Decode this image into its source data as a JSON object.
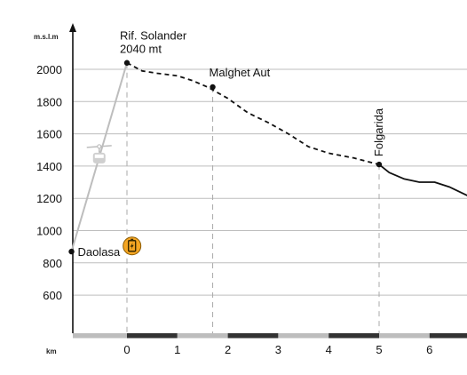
{
  "chart_data": {
    "type": "line",
    "ylabel": "m.s.l.m",
    "xlabel": "km",
    "y_ticks": [
      600,
      800,
      1000,
      1200,
      1400,
      1600,
      1800,
      2000
    ],
    "x_ticks": [
      0,
      1,
      2,
      3,
      4,
      5,
      6
    ],
    "xlim": [
      -1.1,
      6.8
    ],
    "ylim": [
      450,
      2250
    ],
    "grid": "horizontal",
    "series": [
      {
        "style": "solid-gray",
        "points": [
          [
            -1.1,
            870
          ],
          [
            0,
            2040
          ]
        ]
      },
      {
        "style": "dashed",
        "points": [
          [
            0,
            2040
          ],
          [
            0.3,
            1990
          ],
          [
            0.6,
            1975
          ],
          [
            1.0,
            1960
          ],
          [
            1.3,
            1930
          ],
          [
            1.6,
            1890
          ],
          [
            2.0,
            1820
          ],
          [
            2.4,
            1730
          ],
          [
            2.8,
            1670
          ],
          [
            3.2,
            1600
          ],
          [
            3.6,
            1520
          ],
          [
            4.0,
            1480
          ],
          [
            4.5,
            1450
          ],
          [
            5.0,
            1410
          ]
        ]
      },
      {
        "style": "solid",
        "points": [
          [
            5.0,
            1410
          ],
          [
            5.2,
            1360
          ],
          [
            5.5,
            1320
          ],
          [
            5.8,
            1300
          ],
          [
            6.1,
            1300
          ],
          [
            6.4,
            1270
          ],
          [
            6.8,
            1210
          ]
        ]
      }
    ],
    "points": [
      {
        "name": "Daolasa",
        "x": -1.1,
        "y": 870,
        "label_position": "right"
      },
      {
        "name": "Rif. Solander",
        "sublabel": "2040 mt",
        "x": 0,
        "y": 2040,
        "label_position": "above"
      },
      {
        "name": "Malghet Aut",
        "x": 1.7,
        "y": 1890,
        "label_position": "above"
      },
      {
        "name": "Folgarida",
        "x": 5.0,
        "y": 1410,
        "label_position": "above-vertical"
      }
    ],
    "icons": [
      {
        "name": "cable-car-icon",
        "x": -0.55,
        "y": 1450
      },
      {
        "name": "ebike-charging-icon",
        "x": 0.1,
        "y": 905,
        "color": "#F5A623"
      }
    ],
    "colors": {
      "axis": "#111111",
      "grid": "#bdbdbd",
      "dashed_line": "#111111",
      "cable_line": "#bdbdbd",
      "km_bar_dark": "#333333",
      "km_bar_light": "#bdbdbd",
      "charging_icon": "#F5A623"
    }
  }
}
